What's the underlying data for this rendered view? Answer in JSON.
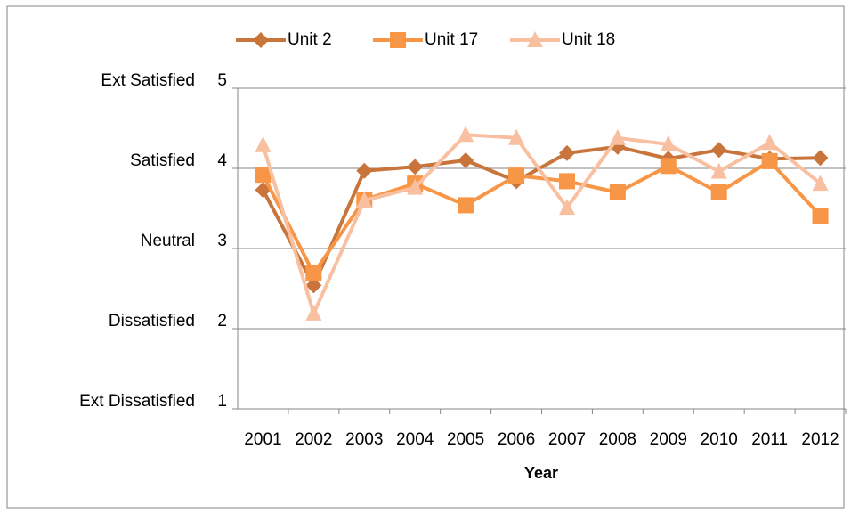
{
  "chart_data": {
    "type": "line",
    "x_label": "Year",
    "categories": [
      "2001",
      "2002",
      "2003",
      "2004",
      "2005",
      "2006",
      "2007",
      "2008",
      "2009",
      "2010",
      "2011",
      "2012"
    ],
    "series": [
      {
        "name": "Unit 2",
        "color": "#c8743a",
        "marker": "diamond",
        "values": [
          3.73,
          2.54,
          3.97,
          4.02,
          4.1,
          3.84,
          4.19,
          4.27,
          4.12,
          4.23,
          4.12,
          4.13
        ]
      },
      {
        "name": "Unit 17",
        "color": "#f79646",
        "marker": "square",
        "values": [
          3.92,
          2.69,
          3.61,
          3.81,
          3.54,
          3.91,
          3.84,
          3.7,
          4.03,
          3.7,
          4.09,
          3.41
        ]
      },
      {
        "name": "Unit 18",
        "color": "#f8c0a0",
        "marker": "triangle",
        "values": [
          4.29,
          2.19,
          3.6,
          3.76,
          4.42,
          4.38,
          3.51,
          4.38,
          4.3,
          3.96,
          4.32,
          3.81
        ]
      }
    ],
    "ylim": [
      1,
      5
    ],
    "yticks": [
      1,
      2,
      3,
      4,
      5
    ],
    "ytick_names": [
      "Ext Dissatisfied",
      "Dissatisfied",
      "Neutral",
      "Satisfied",
      "Ext Satisfied"
    ],
    "grid": true,
    "legend": "top"
  }
}
